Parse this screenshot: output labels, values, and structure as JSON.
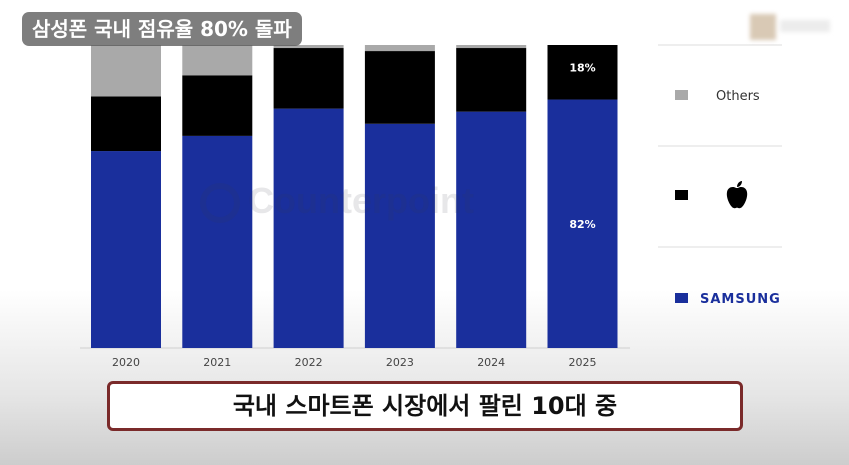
{
  "headline": "삼성폰 국내 점유율 80% 돌파",
  "caption": "국내 스마트폰 시장에서 팔린 10대 중",
  "watermark": "Counterpoint",
  "colors": {
    "samsung": "#1a2f9c",
    "apple": "#000000",
    "others": "#a9a9a9",
    "caption_border": "#7a2a2a"
  },
  "chart_data": {
    "type": "bar",
    "stacked": true,
    "categories": [
      "2020",
      "2021",
      "2022",
      "2023",
      "2024",
      "2025"
    ],
    "series": [
      {
        "name": "SAMSUNG",
        "values": [
          65,
          70,
          79,
          74,
          78,
          82
        ],
        "color_key": "samsung",
        "icon": "samsung-wordmark"
      },
      {
        "name": "",
        "values": [
          18,
          20,
          20,
          24,
          21,
          18
        ],
        "color_key": "apple",
        "icon": "apple-icon"
      },
      {
        "name": "Others",
        "values": [
          17,
          10,
          1,
          2,
          1,
          0
        ],
        "color_key": "others",
        "icon": "square"
      }
    ],
    "data_labels": [
      {
        "category": "2025",
        "series": "apple",
        "text": "18%"
      },
      {
        "category": "2025",
        "series": "samsung",
        "text": "82%"
      }
    ],
    "ylim": [
      0,
      100
    ],
    "legend": [
      "Others",
      "",
      "SAMSUNG"
    ],
    "legend_position": "right",
    "grid": false
  }
}
